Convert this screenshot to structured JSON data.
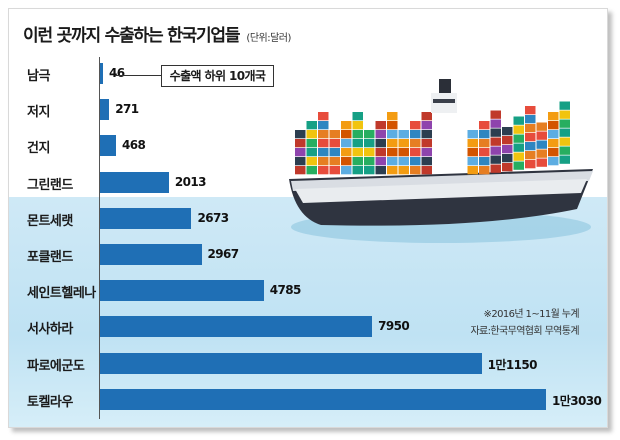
{
  "title": "이런 곳까지 수출하는 한국기업들",
  "unit": "(단위:달러)",
  "callout": "수출액 하위 10개국",
  "notes": [
    "※2016년 1~11월 누계",
    "자료:한국무역협회 무역통계"
  ],
  "colors": {
    "bar": "#1f6fb5",
    "sea": "#c6e6f5"
  },
  "chart_data": {
    "type": "bar",
    "orientation": "horizontal",
    "categories": [
      "남극",
      "저지",
      "건지",
      "그린랜드",
      "몬트세랫",
      "포클랜드",
      "세인트헬레나",
      "서사하라",
      "파로에군도",
      "토켈라우"
    ],
    "values": [
      46,
      271,
      468,
      2013,
      2673,
      2967,
      4785,
      7950,
      11150,
      13030
    ],
    "value_labels": [
      "46",
      "271",
      "468",
      "2013",
      "2673",
      "2967",
      "4785",
      "7950",
      "1만1150",
      "1만3030"
    ],
    "xlim": [
      0,
      13030
    ],
    "grid": false,
    "legend": "none"
  }
}
